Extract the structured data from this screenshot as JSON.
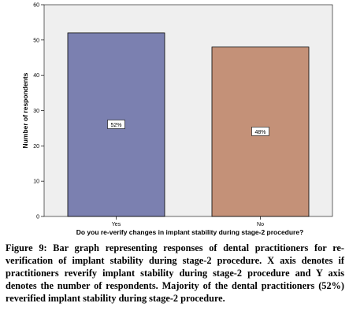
{
  "chart_data": {
    "type": "bar",
    "categories": [
      "Yes",
      "No"
    ],
    "values": [
      52,
      48
    ],
    "data_labels": [
      "52%",
      "48%"
    ],
    "ylabel": "Number of respondents",
    "xlabel": "Do you re-verify changes in implant stability during stage-2 procedure?",
    "ylim": [
      0,
      60
    ],
    "yticks": [
      0,
      10,
      20,
      30,
      40,
      50,
      60
    ],
    "grid": false,
    "bar_colors": [
      "#7b80b0",
      "#c49178"
    ],
    "plot_background": "#efefef"
  },
  "caption": "Figure 9: Bar graph representing responses of dental practitioners for re-verification of implant stability during stage-2 procedure. X axis denotes if practitioners reverify implant stability during stage-2 procedure and Y axis denotes the number of respondents. Majority of the dental practitioners (52%) reverified implant stability during stage-2 procedure."
}
